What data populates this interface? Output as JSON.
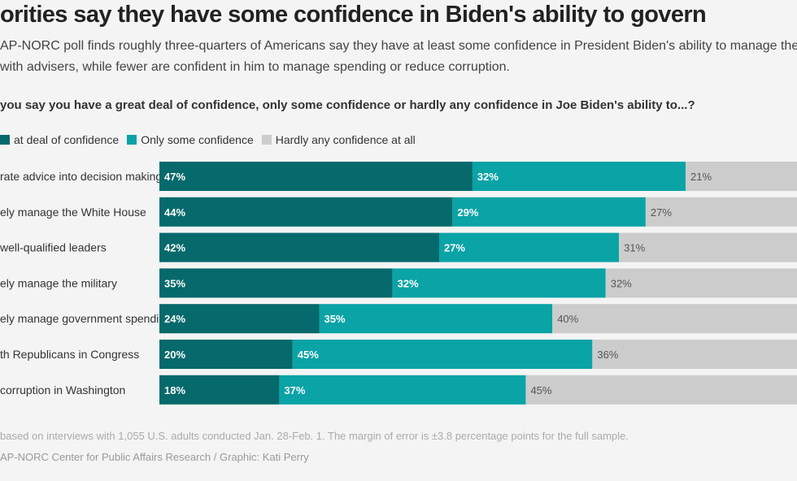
{
  "title": "orities say they have some confidence in Biden's ability to govern",
  "subtitle_line1": "AP-NORC poll finds roughly three-quarters of Americans say they have at least some confidence in President Biden's ability to manage the White House and",
  "subtitle_line2": "with advisers, while fewer are confident in him to manage spending or reduce corruption.",
  "question": "you say you have a great deal of confidence, only some confidence or hardly any confidence in Joe Biden's ability to...?",
  "note": "based on interviews with 1,055 U.S. adults conducted Jan. 28-Feb. 1. The margin of error is ±3.8 percentage points for the full sample.",
  "source": "AP-NORC Center for Public Affairs Research / Graphic: Kati Perry",
  "colors": {
    "great_deal": "#06696b",
    "only_some": "#0aa3a6",
    "hardly_any": "#cccccc"
  },
  "chart_data": {
    "type": "bar",
    "orientation": "horizontal",
    "stacked": true,
    "unit": "%",
    "xlim": [
      0,
      100
    ],
    "legend_position": "top-left",
    "categories": [
      "rate advice into decision making",
      "ely manage the White House",
      "well-qualified leaders",
      "ely manage the military",
      "ely manage government spending",
      "th Republicans in Congress",
      "corruption in Washington"
    ],
    "series": [
      {
        "name": "at deal of confidence",
        "values": [
          47,
          44,
          42,
          35,
          24,
          20,
          18
        ]
      },
      {
        "name": "Only some confidence",
        "values": [
          32,
          29,
          27,
          32,
          35,
          45,
          37
        ]
      },
      {
        "name": "Hardly any confidence at all",
        "values": [
          21,
          27,
          31,
          32,
          40,
          36,
          45
        ]
      }
    ],
    "data_labels": [
      [
        "47%",
        "32%",
        "21%"
      ],
      [
        "44%",
        "29%",
        "27%"
      ],
      [
        "42%",
        "27%",
        "31%"
      ],
      [
        "35%",
        "32%",
        "32%"
      ],
      [
        "24%",
        "35%",
        "40%"
      ],
      [
        "20%",
        "45%",
        "36%"
      ],
      [
        "18%",
        "37%",
        "45%"
      ]
    ]
  }
}
